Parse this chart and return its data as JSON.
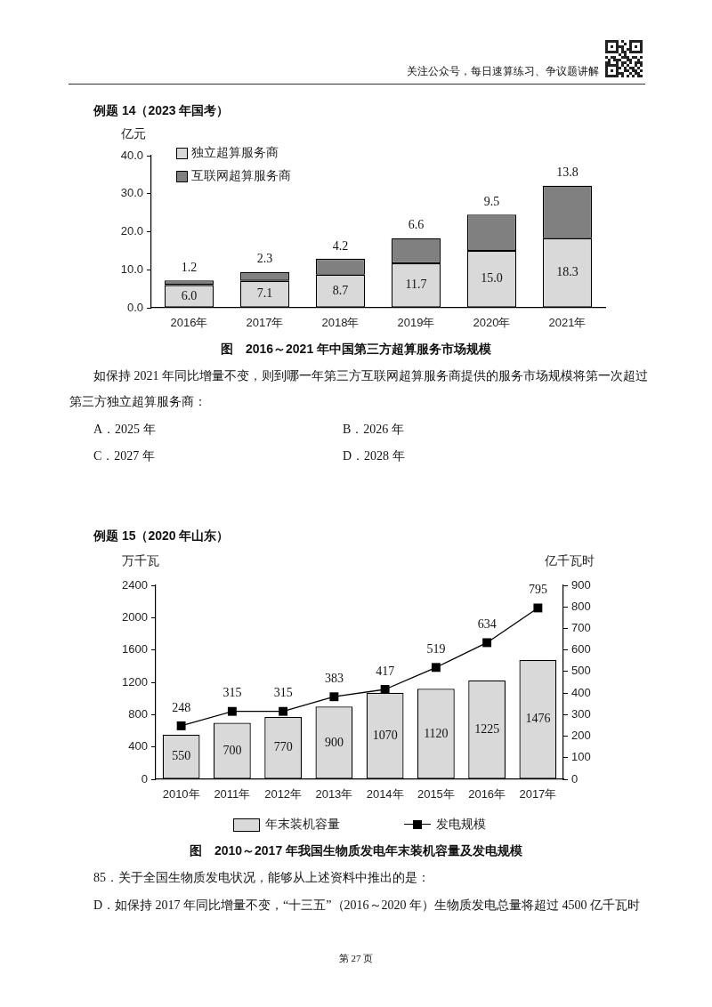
{
  "chart_data": [
    {
      "type": "bar",
      "title": "图　2016～2021 年中国第三方超算服务市场规模",
      "ylabel": "亿元",
      "categories": [
        "2016年",
        "2017年",
        "2018年",
        "2019年",
        "2020年",
        "2021年"
      ],
      "stacked": true,
      "series": [
        {
          "name": "独立超算服务商",
          "color": "#d9d9d9",
          "values": [
            6.0,
            7.1,
            8.7,
            11.7,
            15.0,
            18.3
          ],
          "value_labels": [
            "6.0",
            "7.1",
            "8.7",
            "11.7",
            "15.0",
            "18.3"
          ]
        },
        {
          "name": "互联网超算服务商",
          "color": "#808080",
          "values": [
            1.2,
            2.3,
            4.2,
            6.6,
            9.5,
            13.8
          ],
          "value_labels": [
            "1.2",
            "2.3",
            "4.2",
            "6.6",
            "9.5",
            "13.8"
          ]
        }
      ],
      "ylim": [
        0,
        40
      ],
      "yticks": [
        {
          "value": 0,
          "label": "0.0"
        },
        {
          "value": 10,
          "label": "10.0"
        },
        {
          "value": 20,
          "label": "20.0"
        },
        {
          "value": 30,
          "label": "30.0"
        },
        {
          "value": 40,
          "label": "40.0"
        }
      ],
      "legend": "top left",
      "annotations": [
        "关注公众号，每日速算练习、争议题讲解",
        "例题 14（2023 年国考）",
        "如保持 2021 年同比增量不变，则到哪一年第三方互联网超算服务商提供的服务市场规模将第一次超过第三方独立超算服务商：",
        "A．2025 年",
        "B．2026 年",
        "C．2027 年",
        "D．2028 年"
      ]
    },
    {
      "type": "bar",
      "title": "图　2010～2017 年我国生物质发电年末装机容量及发电规模",
      "ylabel": "万千瓦",
      "y2label": "亿千瓦时",
      "categories": [
        "2010年",
        "2011年",
        "2012年",
        "2013年",
        "2014年",
        "2015年",
        "2016年",
        "2017年"
      ],
      "series": [
        {
          "name": "年末装机容量",
          "color": "#d9d9d9",
          "values": [
            550,
            700,
            770,
            900,
            1070,
            1120,
            1225,
            1476
          ]
        },
        {
          "name": "发电规模",
          "type": "line",
          "axis": "y2",
          "color": "#000000",
          "values": [
            248,
            315,
            315,
            383,
            417,
            519,
            634,
            795
          ]
        }
      ],
      "ylim": [
        0,
        2400
      ],
      "yticks": [
        0,
        400,
        800,
        1200,
        1600,
        2000,
        2400
      ],
      "y2lim": [
        0,
        900
      ],
      "y2ticks": [
        0,
        100,
        200,
        300,
        400,
        500,
        600,
        700,
        800,
        900
      ],
      "data_labels": true,
      "marker": "square",
      "legend": "bottom",
      "annotations": [
        "例题 15（2020 年山东）",
        "85．关于全国生物质发电状况，能够从上述资料中推出的是：",
        "D．如保持 2017 年同比增量不变，“十三五”（2016～2020 年）生物质发电总量将超过 4500 亿千瓦时",
        "第 27 页"
      ]
    }
  ]
}
